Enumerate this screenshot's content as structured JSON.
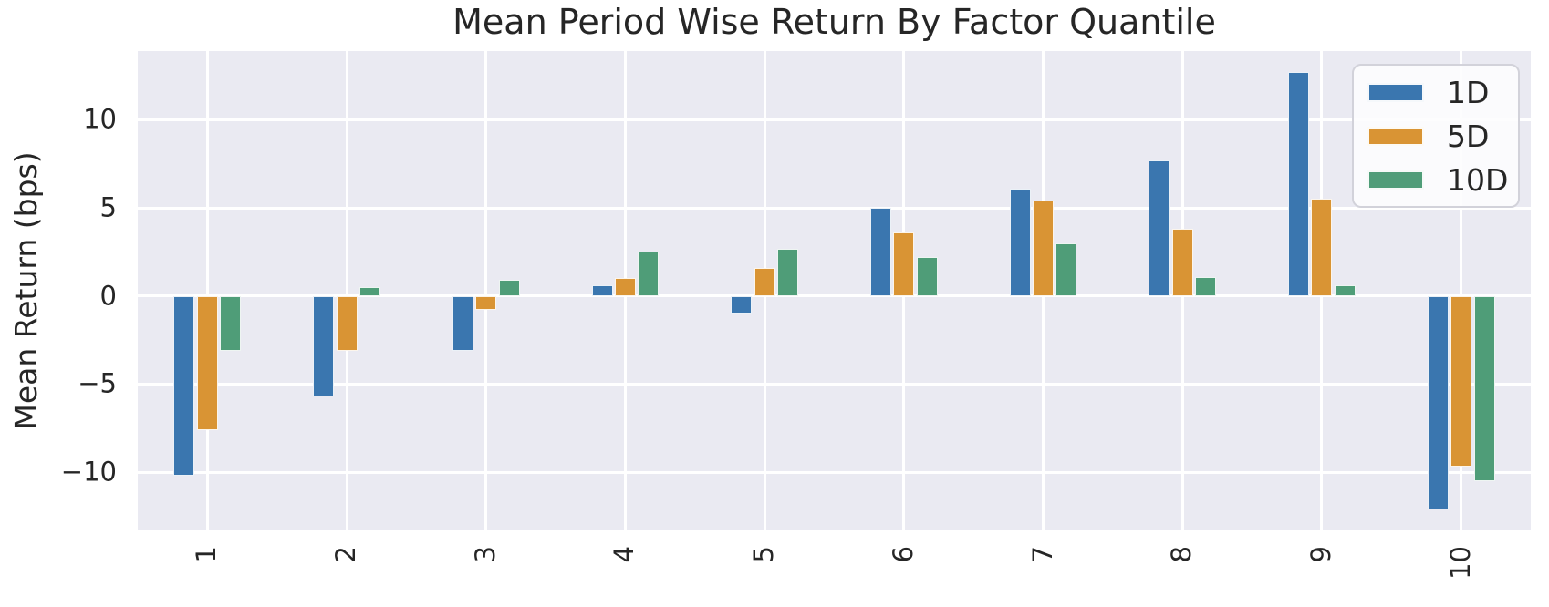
{
  "title": "Mean Period Wise Return By Factor Quantile",
  "colors": {
    "figure_bg": "#FFFFFF",
    "plot_bg": "#EAEAF2",
    "grid": "#FFFFFF",
    "text": "#262626",
    "series_1d": "#3A76AF",
    "series_5d": "#D99434",
    "series_10d": "#4F9D78"
  },
  "legend": {
    "items": [
      "1D",
      "5D",
      "10D"
    ]
  },
  "chart_data": {
    "type": "bar",
    "title": "Mean Period Wise Return By Factor Quantile",
    "xlabel": "",
    "ylabel": "Mean Return (bps)",
    "categories": [
      "1",
      "2",
      "3",
      "4",
      "5",
      "6",
      "7",
      "8",
      "9",
      "10"
    ],
    "series": [
      {
        "name": "1D",
        "color": "#3A76AF",
        "values": [
          -10.2,
          -5.7,
          -3.1,
          0.6,
          -1.0,
          5.0,
          6.1,
          7.7,
          12.7,
          -12.1
        ]
      },
      {
        "name": "5D",
        "color": "#D99434",
        "values": [
          -7.6,
          -3.1,
          -0.8,
          1.0,
          1.6,
          3.6,
          5.4,
          3.8,
          5.5,
          -9.7
        ]
      },
      {
        "name": "10D",
        "color": "#4F9D78",
        "values": [
          -3.1,
          0.5,
          0.9,
          2.5,
          2.7,
          2.2,
          3.0,
          1.1,
          0.6,
          -10.5
        ]
      }
    ],
    "ylim": [
      -13.3,
      13.9
    ],
    "yticks": [
      -10,
      -5,
      0,
      5,
      10
    ],
    "ytick_labels": [
      "−10",
      "−5",
      "0",
      "5",
      "10"
    ],
    "grid": true,
    "legend_position": "upper right"
  }
}
